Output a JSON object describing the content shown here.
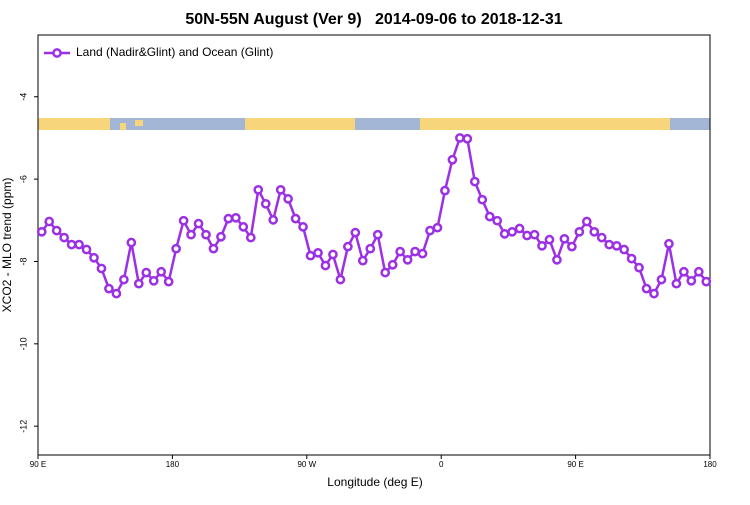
{
  "chart_data": {
    "type": "line",
    "title": "50N-55N August (Ver 9)   2014-09-06 to 2018-12-31",
    "x_label": "Longitude (deg E)",
    "y_label": "XCO2 - MLO trend (ppm)",
    "xlim": [
      90,
      540
    ],
    "ylim": [
      -12.7,
      -2.5
    ],
    "xticks": [
      {
        "value": 90,
        "label": "90 E"
      },
      {
        "value": 180,
        "label": "180"
      },
      {
        "value": 270,
        "label": "90 W"
      },
      {
        "value": 360,
        "label": "0"
      },
      {
        "value": 450,
        "label": "90 E"
      },
      {
        "value": 540,
        "label": "180"
      }
    ],
    "yticks": [
      -4,
      -6,
      -8,
      -10,
      -12
    ],
    "legend": "top-left",
    "x": [
      92.5,
      97.5,
      102.5,
      107.5,
      112.5,
      117.5,
      122.5,
      127.5,
      132.5,
      137.5,
      142.5,
      147.5,
      152.5,
      157.5,
      162.5,
      167.5,
      172.5,
      177.5,
      182.5,
      187.5,
      192.5,
      197.5,
      202.5,
      207.5,
      212.5,
      217.5,
      222.5,
      227.5,
      232.5,
      237.5,
      242.5,
      247.5,
      252.5,
      257.5,
      262.5,
      267.5,
      272.5,
      277.5,
      282.5,
      287.5,
      292.5,
      297.5,
      302.5,
      307.5,
      312.5,
      317.5,
      322.5,
      327.5,
      332.5,
      337.5,
      342.5,
      347.5,
      352.5,
      357.5,
      362.5,
      367.5,
      372.5,
      377.5,
      382.5,
      387.5,
      392.5,
      397.5,
      402.5,
      407.5,
      412.5,
      417.5,
      422.5,
      427.5,
      432.5,
      437.5,
      442.5,
      447.5,
      452.5,
      457.5,
      462.5,
      467.5,
      472.5,
      477.5,
      482.5,
      487.5,
      492.5,
      497.5,
      502.5,
      507.5,
      512.5,
      517.5,
      522.5,
      527.5,
      532.5,
      537.5
    ],
    "series": [
      {
        "name": "Land (Nadir&Glint) and Ocean (Glint)",
        "color": "#9b30e6",
        "values": [
          -7.28,
          -7.03,
          -7.25,
          -7.42,
          -7.59,
          -7.59,
          -7.71,
          -7.91,
          -8.17,
          -8.66,
          -8.78,
          -8.44,
          -7.54,
          -8.54,
          -8.27,
          -8.47,
          -8.25,
          -8.49,
          -7.69,
          -7.01,
          -7.35,
          -7.08,
          -7.35,
          -7.69,
          -7.4,
          -6.96,
          -6.94,
          -7.16,
          -7.42,
          -6.26,
          -6.6,
          -6.99,
          -6.26,
          -6.48,
          -6.96,
          -7.16,
          -7.86,
          -7.79,
          -8.1,
          -7.83,
          -8.44,
          -7.64,
          -7.3,
          -7.98,
          -7.69,
          -7.35,
          -8.27,
          -8.08,
          -7.76,
          -7.96,
          -7.76,
          -7.81,
          -7.25,
          -7.18,
          -6.28,
          -5.53,
          -5.0,
          -5.02,
          -6.06,
          -6.5,
          -6.91,
          -7.01,
          -7.33,
          -7.28,
          -7.2,
          -7.37,
          -7.35,
          -7.62,
          -7.47,
          -7.96,
          -7.45,
          -7.64,
          -7.28,
          -7.03,
          -7.28,
          -7.42,
          -7.59,
          -7.62,
          -7.71,
          -7.93,
          -8.15,
          -8.66,
          -8.78,
          -8.44,
          -7.57,
          -8.54,
          -8.25,
          -8.47,
          -8.25,
          -8.49
        ]
      }
    ]
  }
}
